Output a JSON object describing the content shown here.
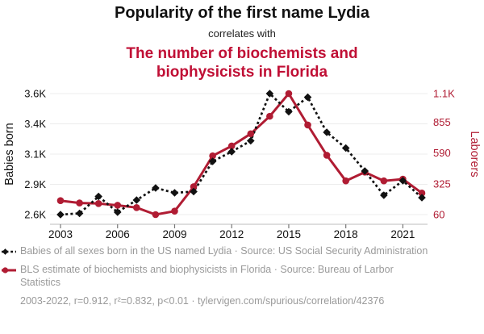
{
  "header": {
    "title": "Popularity of the first name Lydia",
    "subtitle": "correlates with",
    "red_title": "The number of biochemists and biophysicists in Florida"
  },
  "chart_data": {
    "type": "line",
    "x": [
      2003,
      2004,
      2005,
      2006,
      2007,
      2008,
      2009,
      2010,
      2011,
      2012,
      2013,
      2014,
      2015,
      2016,
      2017,
      2018,
      2019,
      2020,
      2021,
      2022
    ],
    "x_ticks": [
      2003,
      2006,
      2009,
      2012,
      2015,
      2018,
      2021
    ],
    "series": [
      {
        "id": "lydia-babies",
        "name": "Babies of all sexes born in the US named Lydia",
        "axis": "left",
        "color": "#111111",
        "style": "dashed",
        "marker": "diamond",
        "values": [
          2600,
          2610,
          2750,
          2620,
          2720,
          2820,
          2780,
          2790,
          3040,
          3120,
          3210,
          3600,
          3450,
          3570,
          3280,
          3150,
          2960,
          2760,
          2880,
          2740
        ]
      },
      {
        "id": "fl-biochemists",
        "name": "BLS estimate of biochemists and biophysicists in Florida",
        "axis": "right",
        "color": "#b01c33",
        "style": "solid",
        "marker": "circle",
        "values": [
          180,
          160,
          155,
          140,
          120,
          60,
          90,
          300,
          565,
          650,
          755,
          905,
          1100,
          830,
          570,
          350,
          425,
          350,
          365,
          245
        ]
      }
    ],
    "left_axis": {
      "label": "Babies born",
      "ticks": [
        "2.6K",
        "2.9K",
        "3.1K",
        "3.4K",
        "3.6K"
      ],
      "tick_values": [
        2600,
        2850,
        3100,
        3350,
        3600
      ],
      "range": [
        2600,
        3600
      ]
    },
    "right_axis": {
      "label": "Laborers",
      "ticks": [
        "60",
        "325",
        "590",
        "855",
        "1.1K"
      ],
      "tick_values": [
        60,
        325,
        590,
        855,
        1100
      ],
      "range": [
        60,
        1100
      ]
    },
    "grid": true,
    "legend_position": "bottom"
  },
  "legend": {
    "items": [
      {
        "label": "Babies of all sexes born in the US named Lydia · Source: US Social Security Administration",
        "marker": "diamond-dashed",
        "color": "#111111"
      },
      {
        "label": "BLS estimate of biochemists and biophysicists in Florida · Source: Bureau of Larbor Statistics",
        "marker": "circle-solid",
        "color": "#b01c33"
      }
    ]
  },
  "footer": {
    "text": "2003-2022, r=0.912, r²=0.832, p<0.01 · tylervigen.com/spurious/correlation/42376"
  },
  "colors": {
    "title_red": "#c00f35",
    "series_red": "#b01c33",
    "series_black": "#111111",
    "legend_gray": "#9a9a9a",
    "grid": "#ececec",
    "axis_line": "#c9c9c9",
    "tick_mark": "#777777",
    "text": "#111111"
  }
}
